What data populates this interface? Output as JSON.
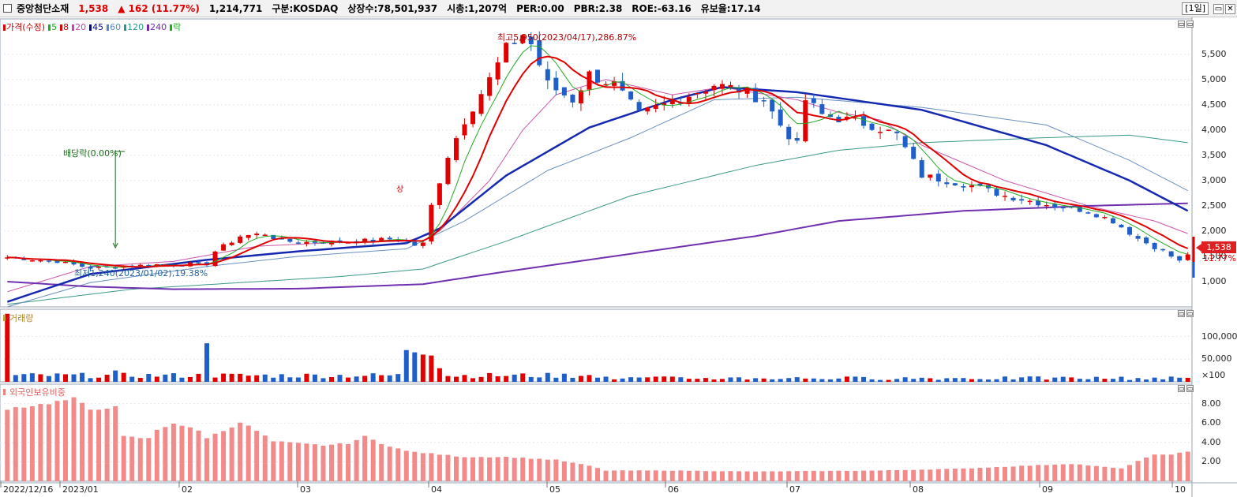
{
  "titlebar": {
    "stock_name": "중앙첨단소재",
    "price": "1,538",
    "change": "▲ 162 (11.77%)",
    "volume": "1,214,771",
    "market": "구분:KOSDAQ",
    "listed_shares": "상장수:78,501,937",
    "market_cap": "시총:1,207억",
    "per": "PER:0.00",
    "pbr": "PBR:2.38",
    "roe": "ROE:-63.16",
    "float_ratio": "유보율:17.14",
    "period": "[1일]",
    "colors": {
      "up": "#e00000",
      "down": "#1f5fc9"
    }
  },
  "price_panel": {
    "legend": [
      {
        "label": "가격(수정)",
        "color": "#e00000"
      },
      {
        "label": "5",
        "color": "#22aa22"
      },
      {
        "label": "8",
        "color": "#e00000"
      },
      {
        "label": "20",
        "color": "#cc44aa"
      },
      {
        "label": "45",
        "color": "#0000aa"
      },
      {
        "label": "60",
        "color": "#5588bb"
      },
      {
        "label": "120",
        "color": "#229988"
      },
      {
        "label": "240",
        "color": "#7722bb"
      },
      {
        "label": "락",
        "color": "#22aa22"
      }
    ],
    "annotations": {
      "high": "최고5,950(2023/04/17),286.87%",
      "low": "최저1,240(2023/01/02),19.38%",
      "dividend": "배당락(0.00%)",
      "up_limit": "상"
    },
    "current_price": "1,538",
    "current_change": "11.77%",
    "y_ticks": [
      "5,500",
      "5,000",
      "4,500",
      "4,000",
      "3,500",
      "3,000",
      "2,500",
      "2,000",
      "1,500",
      "1,000"
    ]
  },
  "volume_panel": {
    "legend": "거래량",
    "y_ticks": [
      "100,000",
      "50,000",
      "×100"
    ]
  },
  "foreign_panel": {
    "legend": "외국인보유비중",
    "y_ticks": [
      "8.00",
      "6.00",
      "4.00",
      "2.00"
    ]
  },
  "x_axis": [
    "2022/12/16",
    "2023/01",
    "02",
    "03",
    "04",
    "05",
    "06",
    "07",
    "08",
    "09",
    "10"
  ],
  "chart_data": {
    "type": "candlestick",
    "price_axis": {
      "min": 500,
      "max": 6200,
      "ticks": [
        1000,
        1500,
        2000,
        2500,
        3000,
        3500,
        4000,
        4500,
        5000,
        5500
      ]
    },
    "price_path": [
      [
        0,
        1480
      ],
      [
        6,
        1400
      ],
      [
        9,
        1300
      ],
      [
        10,
        1270
      ],
      [
        18,
        1340
      ],
      [
        24,
        1350
      ],
      [
        25,
        1600
      ],
      [
        28,
        1900
      ],
      [
        31,
        1950
      ],
      [
        33,
        1800
      ],
      [
        36,
        1780
      ],
      [
        41,
        1790
      ],
      [
        47,
        1850
      ],
      [
        49,
        1720
      ],
      [
        50,
        1750
      ],
      [
        51,
        2500
      ],
      [
        53,
        3500
      ],
      [
        55,
        4200
      ],
      [
        58,
        5000
      ],
      [
        60,
        5600
      ],
      [
        62,
        5900
      ],
      [
        63,
        5700
      ],
      [
        65,
        4900
      ],
      [
        68,
        4600
      ],
      [
        70,
        5100
      ],
      [
        73,
        4900
      ],
      [
        76,
        4300
      ],
      [
        79,
        4500
      ],
      [
        82,
        4700
      ],
      [
        85,
        4900
      ],
      [
        88,
        4800
      ],
      [
        91,
        4600
      ],
      [
        93,
        4100
      ],
      [
        95,
        3700
      ],
      [
        96,
        4600
      ],
      [
        98,
        4300
      ],
      [
        101,
        4200
      ],
      [
        104,
        4100
      ],
      [
        107,
        3900
      ],
      [
        110,
        3100
      ],
      [
        113,
        3000
      ],
      [
        116,
        2900
      ],
      [
        120,
        2700
      ],
      [
        123,
        2600
      ],
      [
        126,
        2500
      ],
      [
        130,
        2400
      ],
      [
        133,
        2200
      ],
      [
        136,
        1850
      ],
      [
        139,
        1600
      ],
      [
        141,
        1400
      ],
      [
        142,
        1538
      ]
    ],
    "ma_lines": {
      "ma45": [
        [
          0,
          600
        ],
        [
          10,
          1150
        ],
        [
          24,
          1430
        ],
        [
          35,
          1600
        ],
        [
          48,
          1760
        ],
        [
          52,
          2050
        ],
        [
          60,
          3100
        ],
        [
          70,
          4050
        ],
        [
          80,
          4600
        ],
        [
          86,
          4850
        ],
        [
          95,
          4750
        ],
        [
          110,
          4400
        ],
        [
          125,
          3700
        ],
        [
          135,
          3000
        ],
        [
          142,
          2400
        ]
      ],
      "ma60": [
        [
          0,
          500
        ],
        [
          10,
          980
        ],
        [
          24,
          1300
        ],
        [
          35,
          1500
        ],
        [
          48,
          1650
        ],
        [
          55,
          2200
        ],
        [
          65,
          3200
        ],
        [
          75,
          3850
        ],
        [
          85,
          4600
        ],
        [
          95,
          4650
        ],
        [
          110,
          4450
        ],
        [
          125,
          4100
        ],
        [
          135,
          3400
        ],
        [
          142,
          2800
        ]
      ],
      "ma120": [
        [
          0,
          550
        ],
        [
          15,
          850
        ],
        [
          30,
          1000
        ],
        [
          40,
          1100
        ],
        [
          50,
          1250
        ],
        [
          60,
          1800
        ],
        [
          75,
          2700
        ],
        [
          90,
          3300
        ],
        [
          100,
          3600
        ],
        [
          110,
          3750
        ],
        [
          125,
          3850
        ],
        [
          135,
          3900
        ],
        [
          142,
          3750
        ]
      ],
      "ma240": [
        [
          0,
          1000
        ],
        [
          10,
          900
        ],
        [
          20,
          850
        ],
        [
          35,
          860
        ],
        [
          50,
          950
        ],
        [
          60,
          1200
        ],
        [
          75,
          1550
        ],
        [
          90,
          1900
        ],
        [
          100,
          2200
        ],
        [
          115,
          2400
        ],
        [
          130,
          2500
        ],
        [
          142,
          2550
        ]
      ],
      "ma20": [
        [
          0,
          800
        ],
        [
          10,
          1300
        ],
        [
          20,
          1400
        ],
        [
          30,
          1700
        ],
        [
          40,
          1780
        ],
        [
          48,
          1800
        ],
        [
          52,
          2000
        ],
        [
          58,
          3000
        ],
        [
          62,
          4000
        ],
        [
          66,
          4700
        ],
        [
          72,
          5000
        ],
        [
          80,
          4700
        ],
        [
          86,
          4850
        ],
        [
          95,
          4600
        ],
        [
          100,
          4350
        ],
        [
          105,
          4200
        ],
        [
          110,
          3700
        ],
        [
          120,
          3000
        ],
        [
          130,
          2500
        ],
        [
          138,
          2200
        ],
        [
          142,
          1950
        ]
      ]
    },
    "volume_axis": {
      "min": 0,
      "max": 160000,
      "ticks": [
        50000,
        100000
      ]
    },
    "volume_events": [
      [
        0,
        150000
      ],
      [
        13,
        25000
      ],
      [
        24,
        85000
      ],
      [
        48,
        70000
      ],
      [
        49,
        65000
      ],
      [
        50,
        60000
      ],
      [
        51,
        58000
      ],
      [
        52,
        30000
      ],
      [
        70,
        15000
      ],
      [
        95,
        14000
      ],
      [
        135,
        17000
      ]
    ],
    "foreign_axis": {
      "min": 0,
      "max": 10,
      "ticks": [
        2,
        4,
        6,
        8
      ]
    },
    "foreign_path": [
      [
        0,
        7.5
      ],
      [
        4,
        7.9
      ],
      [
        8,
        8.5
      ],
      [
        10,
        7.4
      ],
      [
        12,
        7.6
      ],
      [
        13,
        7.6
      ],
      [
        14,
        4.6
      ],
      [
        17,
        4.4
      ],
      [
        18,
        5.3
      ],
      [
        20,
        6.0
      ],
      [
        23,
        5.2
      ],
      [
        24,
        4.5
      ],
      [
        26,
        5.2
      ],
      [
        28,
        6.1
      ],
      [
        30,
        5.2
      ],
      [
        32,
        4.1
      ],
      [
        38,
        3.7
      ],
      [
        41,
        3.9
      ],
      [
        43,
        4.6
      ],
      [
        45,
        3.9
      ],
      [
        48,
        3.1
      ],
      [
        55,
        2.5
      ],
      [
        60,
        2.5
      ],
      [
        66,
        2.2
      ],
      [
        70,
        1.6
      ],
      [
        72,
        1.1
      ],
      [
        80,
        1.1
      ],
      [
        90,
        1.0
      ],
      [
        105,
        1.1
      ],
      [
        115,
        1.3
      ],
      [
        120,
        1.5
      ],
      [
        128,
        1.8
      ],
      [
        134,
        1.3
      ],
      [
        136,
        2.1
      ],
      [
        138,
        2.7
      ],
      [
        140,
        2.8
      ],
      [
        142,
        3.0
      ]
    ]
  }
}
